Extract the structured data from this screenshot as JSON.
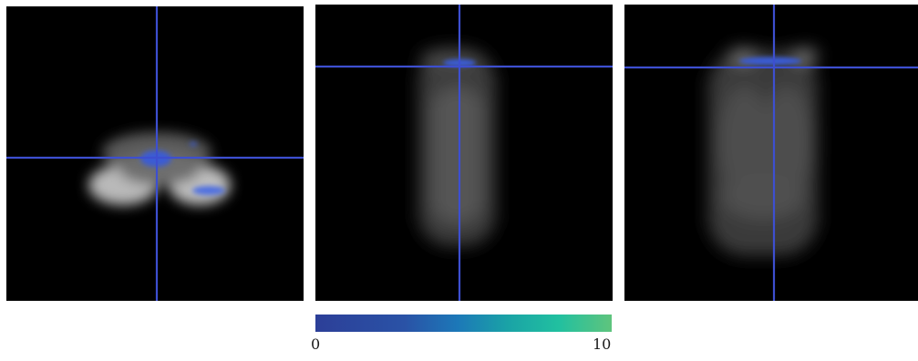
{
  "panels": [
    {
      "view": "axial"
    },
    {
      "view": "sagittal"
    },
    {
      "view": "coronal"
    }
  ],
  "crosshair_color": "#3d4fd0",
  "overlay_color": "#3b5bd4",
  "colorbar": {
    "min_label": "0",
    "max_label": "10",
    "colors": [
      "#2c3f98",
      "#2a52a6",
      "#1c78b8",
      "#1aa3a6",
      "#21c0a0",
      "#5fc47d"
    ]
  }
}
